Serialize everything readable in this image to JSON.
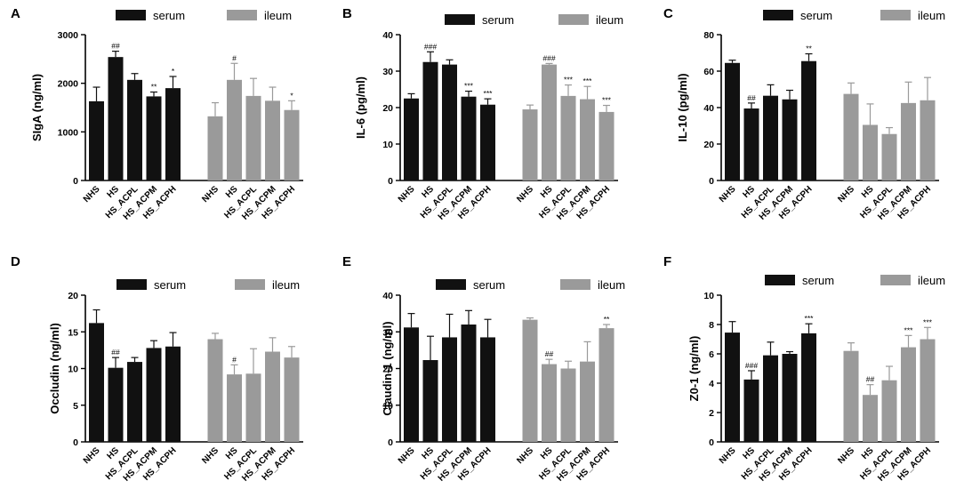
{
  "chart_data": [
    {
      "type": "bar",
      "panel": "A",
      "ylabel": "SIgA (ng/ml)",
      "ylim": [
        0,
        3000
      ],
      "yticks": [
        "0",
        "1000",
        "2000",
        "3000"
      ],
      "categories": [
        "NHS",
        "HS",
        "HS_ACPL",
        "HS_ACPM",
        "HS_ACPH"
      ],
      "series": [
        {
          "name": "serum",
          "color": "#111111",
          "values": [
            1630,
            2540,
            2070,
            1730,
            1900
          ],
          "errors": [
            290,
            120,
            130,
            90,
            240
          ],
          "sig": [
            "",
            "##",
            "",
            "**",
            "*"
          ]
        },
        {
          "name": "ileum",
          "color": "#9a9a9a",
          "values": [
            1320,
            2070,
            1740,
            1640,
            1450
          ],
          "errors": [
            280,
            340,
            360,
            280,
            190
          ],
          "sig": [
            "",
            "#",
            "",
            "",
            "*"
          ]
        }
      ]
    },
    {
      "type": "bar",
      "panel": "B",
      "ylabel": "IL-6 (pg/ml)",
      "ylim": [
        0,
        40
      ],
      "yticks": [
        "0",
        "10",
        "20",
        "30",
        "40"
      ],
      "categories": [
        "NHS",
        "HS",
        "HS_ACPL",
        "HS_ACPM",
        "HS_ACPH"
      ],
      "series": [
        {
          "name": "serum",
          "color": "#111111",
          "values": [
            22.5,
            32.5,
            31.8,
            23.0,
            20.8
          ],
          "errors": [
            1.3,
            2.8,
            1.3,
            1.5,
            1.6
          ],
          "sig": [
            "",
            "###",
            "",
            "***",
            "***"
          ]
        },
        {
          "name": "ileum",
          "color": "#9a9a9a",
          "values": [
            19.5,
            31.8,
            23.2,
            22.3,
            18.8
          ],
          "errors": [
            1.2,
            0.3,
            3.0,
            3.5,
            1.8
          ],
          "sig": [
            "",
            "###",
            "***",
            "***",
            "***"
          ]
        }
      ]
    },
    {
      "type": "bar",
      "panel": "C",
      "ylabel": "IL-10 (pg/ml)",
      "ylim": [
        0,
        80
      ],
      "yticks": [
        "0",
        "20",
        "40",
        "60",
        "80"
      ],
      "categories": [
        "NHS",
        "HS",
        "HS_ACPL",
        "HS_ACPM",
        "HS_ACPH"
      ],
      "series": [
        {
          "name": "serum",
          "color": "#111111",
          "values": [
            64.5,
            39.5,
            46.5,
            44.5,
            65.5
          ],
          "errors": [
            1.5,
            3.0,
            6.0,
            5.0,
            4.0
          ],
          "sig": [
            "",
            "##",
            "",
            "",
            "**"
          ]
        },
        {
          "name": "ileum",
          "color": "#9a9a9a",
          "values": [
            47.5,
            30.5,
            25.5,
            42.5,
            44.0
          ],
          "errors": [
            6.0,
            11.5,
            3.5,
            11.5,
            12.5
          ],
          "sig": [
            "",
            "",
            "",
            "",
            ""
          ]
        }
      ]
    },
    {
      "type": "bar",
      "panel": "D",
      "ylabel": "Occludin (ng/ml)",
      "ylim": [
        0,
        20
      ],
      "yticks": [
        "0",
        "5",
        "10",
        "15",
        "20"
      ],
      "categories": [
        "NHS",
        "HS",
        "HS_ACPL",
        "HS_ACPM",
        "HS_ACPH"
      ],
      "series": [
        {
          "name": "serum",
          "color": "#111111",
          "values": [
            16.2,
            10.1,
            10.9,
            12.8,
            13.0
          ],
          "errors": [
            1.8,
            1.4,
            0.6,
            1.0,
            1.9
          ],
          "sig": [
            "",
            "##",
            "",
            "",
            ""
          ]
        },
        {
          "name": "ileum",
          "color": "#9a9a9a",
          "values": [
            14.0,
            9.2,
            9.3,
            12.3,
            11.5
          ],
          "errors": [
            0.8,
            1.3,
            3.4,
            1.9,
            1.5
          ],
          "sig": [
            "",
            "#",
            "",
            "",
            ""
          ]
        }
      ]
    },
    {
      "type": "bar",
      "panel": "E",
      "ylabel": "Claudin-1 (ng/ml)",
      "ylim": [
        0,
        40
      ],
      "yticks": [
        "0",
        "10",
        "20",
        "30",
        "40"
      ],
      "categories": [
        "NHS",
        "HS",
        "HS_ACPL",
        "HS_ACPM",
        "HS_ACPH"
      ],
      "series": [
        {
          "name": "serum",
          "color": "#111111",
          "values": [
            31.2,
            22.3,
            28.5,
            32.0,
            28.5
          ],
          "errors": [
            3.8,
            6.5,
            6.3,
            3.8,
            4.9
          ],
          "sig": [
            "",
            "",
            "",
            "",
            ""
          ]
        },
        {
          "name": "ileum",
          "color": "#9a9a9a",
          "values": [
            33.3,
            21.2,
            20.0,
            21.9,
            31.0
          ],
          "errors": [
            0.5,
            1.3,
            2.0,
            5.4,
            1.0
          ],
          "sig": [
            "",
            "##",
            "",
            "",
            "**"
          ]
        }
      ]
    },
    {
      "type": "bar",
      "panel": "F",
      "ylabel": "Z0-1 (ng/ml)",
      "ylim": [
        0,
        10
      ],
      "yticks": [
        "0",
        "2",
        "4",
        "6",
        "8",
        "10"
      ],
      "categories": [
        "NHS",
        "HS",
        "HS_ACPL",
        "HS_ACPM",
        "HS_ACPH"
      ],
      "series": [
        {
          "name": "serum",
          "color": "#111111",
          "values": [
            7.45,
            4.25,
            5.9,
            6.0,
            7.4
          ],
          "errors": [
            0.75,
            0.6,
            0.9,
            0.15,
            0.65
          ],
          "sig": [
            "",
            "###",
            "",
            "",
            "***"
          ]
        },
        {
          "name": "ileum",
          "color": "#9a9a9a",
          "values": [
            6.2,
            3.2,
            4.2,
            6.45,
            7.0
          ],
          "errors": [
            0.55,
            0.7,
            0.95,
            0.8,
            0.8
          ],
          "sig": [
            "",
            "##",
            "",
            "***",
            "***"
          ]
        }
      ]
    }
  ]
}
